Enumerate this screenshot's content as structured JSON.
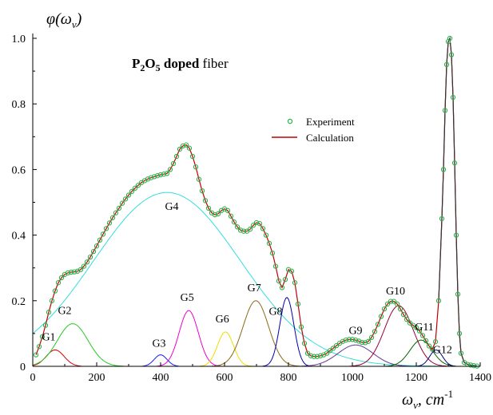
{
  "chart_data": {
    "type": "line",
    "title": {
      "formula": "P",
      "sub1": "2",
      "o": "O",
      "sub2": "5",
      "bold_suffix": " doped",
      "rest": " fiber"
    },
    "ylabel": "φ(ω",
    "ylabel_sub": "v",
    "ylabel_close": ")",
    "xlabel": "ω",
    "xlabel_sub": "v",
    "xlabel_unit": ", cm",
    "xlabel_sup": "-1",
    "xlim": [
      0,
      1400
    ],
    "ylim": [
      0,
      1.05
    ],
    "x_ticks": [
      0,
      200,
      400,
      600,
      800,
      1000,
      1200,
      1400
    ],
    "y_ticks": [
      0,
      0.2,
      0.4,
      0.6,
      0.8,
      1.0
    ],
    "x_tick_labels": [
      "0",
      "200",
      "400",
      "600",
      "800",
      "1000",
      "1200",
      "1400"
    ],
    "y_tick_labels": [
      "0",
      "0.2",
      "0.4",
      "0.6",
      "0.8",
      "1.0"
    ],
    "legend": {
      "position": "center-right",
      "entries": [
        {
          "label": "Experiment",
          "marker": "circle",
          "color": "#2ab04a"
        },
        {
          "label": "Calculation",
          "marker": "line",
          "color": "#c00000"
        }
      ]
    },
    "components": [
      {
        "name": "G1",
        "center": 70,
        "amplitude": 0.05,
        "width": 28,
        "color": "#d40000"
      },
      {
        "name": "G2",
        "center": 125,
        "amplitude": 0.13,
        "width": 48,
        "color": "#22cc22"
      },
      {
        "name": "G3",
        "center": 400,
        "amplitude": 0.035,
        "width": 20,
        "color": "#1a1aff"
      },
      {
        "name": "G4",
        "center": 420,
        "amplitude": 0.53,
        "width": 230,
        "color": "#33dddd"
      },
      {
        "name": "G5",
        "center": 488,
        "amplitude": 0.17,
        "width": 30,
        "color": "#ee00cc"
      },
      {
        "name": "G6",
        "center": 603,
        "amplitude": 0.105,
        "width": 25,
        "color": "#eedd00"
      },
      {
        "name": "G7",
        "center": 698,
        "amplitude": 0.2,
        "width": 40,
        "color": "#8b6914"
      },
      {
        "name": "G8",
        "center": 795,
        "amplitude": 0.21,
        "width": 22,
        "color": "#0000aa"
      },
      {
        "name": "G9",
        "center": 1010,
        "amplitude": 0.065,
        "width": 55,
        "color": "#663399"
      },
      {
        "name": "G10",
        "center": 1145,
        "amplitude": 0.185,
        "width": 45,
        "color": "#990033"
      },
      {
        "name": "G11",
        "center": 1215,
        "amplitude": 0.08,
        "width": 35,
        "color": "#006600"
      },
      {
        "name": "G12",
        "center": 1262,
        "amplitude": 0.05,
        "width": 20,
        "color": "#000088"
      }
    ],
    "experiment": {
      "x": [
        10,
        20,
        30,
        40,
        50,
        60,
        70,
        80,
        90,
        100,
        110,
        120,
        130,
        140,
        150,
        160,
        170,
        180,
        190,
        200,
        210,
        220,
        230,
        240,
        250,
        260,
        270,
        280,
        290,
        300,
        310,
        320,
        330,
        340,
        350,
        360,
        370,
        380,
        390,
        400,
        410,
        420,
        430,
        440,
        450,
        460,
        470,
        480,
        490,
        500,
        510,
        520,
        530,
        540,
        550,
        560,
        570,
        580,
        590,
        600,
        610,
        620,
        630,
        640,
        650,
        660,
        670,
        680,
        690,
        700,
        710,
        720,
        730,
        740,
        750,
        760,
        770,
        780,
        790,
        800,
        810,
        820,
        830,
        840,
        850,
        860,
        870,
        880,
        890,
        900,
        910,
        920,
        930,
        940,
        950,
        960,
        970,
        980,
        990,
        1000,
        1010,
        1020,
        1030,
        1040,
        1050,
        1060,
        1070,
        1080,
        1090,
        1100,
        1110,
        1120,
        1130,
        1140,
        1150,
        1160,
        1170,
        1180,
        1190,
        1200,
        1210,
        1220,
        1230,
        1240,
        1250,
        1260,
        1270,
        1280,
        1285,
        1290,
        1295,
        1300,
        1305,
        1310,
        1315,
        1320,
        1325,
        1330,
        1335,
        1340,
        1350,
        1360,
        1370,
        1380,
        1390
      ],
      "y": [
        0.035,
        0.06,
        0.09,
        0.125,
        0.165,
        0.2,
        0.23,
        0.255,
        0.27,
        0.28,
        0.285,
        0.287,
        0.288,
        0.29,
        0.295,
        0.305,
        0.318,
        0.333,
        0.35,
        0.367,
        0.385,
        0.403,
        0.42,
        0.437,
        0.453,
        0.468,
        0.482,
        0.497,
        0.51,
        0.522,
        0.533,
        0.543,
        0.552,
        0.56,
        0.566,
        0.571,
        0.575,
        0.578,
        0.581,
        0.584,
        0.586,
        0.588,
        0.6,
        0.618,
        0.64,
        0.662,
        0.672,
        0.675,
        0.665,
        0.64,
        0.608,
        0.57,
        0.535,
        0.505,
        0.482,
        0.468,
        0.462,
        0.465,
        0.475,
        0.48,
        0.475,
        0.458,
        0.44,
        0.425,
        0.415,
        0.412,
        0.412,
        0.418,
        0.43,
        0.438,
        0.435,
        0.42,
        0.4,
        0.375,
        0.345,
        0.305,
        0.26,
        0.24,
        0.265,
        0.295,
        0.29,
        0.255,
        0.19,
        0.12,
        0.07,
        0.04,
        0.032,
        0.03,
        0.03,
        0.032,
        0.035,
        0.04,
        0.048,
        0.055,
        0.063,
        0.07,
        0.076,
        0.08,
        0.082,
        0.082,
        0.08,
        0.077,
        0.073,
        0.072,
        0.076,
        0.088,
        0.106,
        0.128,
        0.152,
        0.175,
        0.19,
        0.198,
        0.198,
        0.19,
        0.175,
        0.158,
        0.143,
        0.132,
        0.125,
        0.118,
        0.108,
        0.094,
        0.078,
        0.062,
        0.052,
        0.075,
        0.2,
        0.45,
        0.6,
        0.78,
        0.92,
        0.99,
        1.0,
        0.95,
        0.82,
        0.62,
        0.4,
        0.22,
        0.1,
        0.04,
        0.012,
        0.006,
        0.004,
        0.002,
        0.001
      ]
    },
    "calculation": {
      "x": [
        10,
        20,
        30,
        40,
        50,
        60,
        70,
        80,
        90,
        100,
        110,
        120,
        130,
        140,
        150,
        160,
        170,
        180,
        190,
        200,
        210,
        220,
        230,
        240,
        250,
        260,
        270,
        280,
        290,
        300,
        310,
        320,
        330,
        340,
        350,
        360,
        370,
        380,
        390,
        400,
        410,
        420,
        430,
        440,
        450,
        460,
        470,
        480,
        490,
        500,
        510,
        520,
        530,
        540,
        550,
        560,
        570,
        580,
        590,
        600,
        610,
        620,
        630,
        640,
        650,
        660,
        670,
        680,
        690,
        700,
        710,
        720,
        730,
        740,
        750,
        760,
        770,
        780,
        790,
        800,
        810,
        820,
        830,
        840,
        850,
        860,
        870,
        880,
        890,
        900,
        910,
        920,
        930,
        940,
        950,
        960,
        970,
        980,
        990,
        1000,
        1010,
        1020,
        1030,
        1040,
        1050,
        1060,
        1070,
        1080,
        1090,
        1100,
        1110,
        1120,
        1130,
        1140,
        1150,
        1160,
        1170,
        1180,
        1190,
        1200,
        1210,
        1220,
        1230,
        1240,
        1250,
        1260,
        1270,
        1280,
        1285,
        1290,
        1295,
        1300,
        1305,
        1310,
        1315,
        1320,
        1325,
        1330,
        1335,
        1340,
        1350,
        1360,
        1370,
        1380,
        1390
      ],
      "y": [
        0.035,
        0.06,
        0.09,
        0.125,
        0.165,
        0.2,
        0.23,
        0.255,
        0.27,
        0.28,
        0.285,
        0.287,
        0.288,
        0.29,
        0.295,
        0.305,
        0.318,
        0.333,
        0.35,
        0.367,
        0.385,
        0.403,
        0.42,
        0.437,
        0.453,
        0.468,
        0.482,
        0.497,
        0.51,
        0.522,
        0.533,
        0.543,
        0.552,
        0.56,
        0.566,
        0.571,
        0.575,
        0.578,
        0.581,
        0.584,
        0.586,
        0.588,
        0.6,
        0.618,
        0.64,
        0.662,
        0.672,
        0.675,
        0.665,
        0.64,
        0.608,
        0.57,
        0.535,
        0.505,
        0.482,
        0.468,
        0.462,
        0.465,
        0.475,
        0.48,
        0.475,
        0.458,
        0.44,
        0.425,
        0.415,
        0.412,
        0.412,
        0.418,
        0.43,
        0.438,
        0.435,
        0.42,
        0.4,
        0.375,
        0.345,
        0.305,
        0.26,
        0.24,
        0.265,
        0.295,
        0.29,
        0.255,
        0.19,
        0.12,
        0.07,
        0.04,
        0.032,
        0.03,
        0.03,
        0.032,
        0.035,
        0.04,
        0.048,
        0.055,
        0.063,
        0.07,
        0.076,
        0.08,
        0.082,
        0.082,
        0.08,
        0.077,
        0.073,
        0.072,
        0.076,
        0.088,
        0.106,
        0.128,
        0.152,
        0.175,
        0.19,
        0.198,
        0.198,
        0.19,
        0.175,
        0.158,
        0.143,
        0.132,
        0.125,
        0.118,
        0.108,
        0.094,
        0.078,
        0.062,
        0.052,
        0.075,
        0.2,
        0.45,
        0.6,
        0.78,
        0.92,
        0.99,
        1.0,
        0.95,
        0.82,
        0.62,
        0.4,
        0.22,
        0.1,
        0.04,
        0.012,
        0.006,
        0.004,
        0.002,
        0.001
      ]
    }
  }
}
